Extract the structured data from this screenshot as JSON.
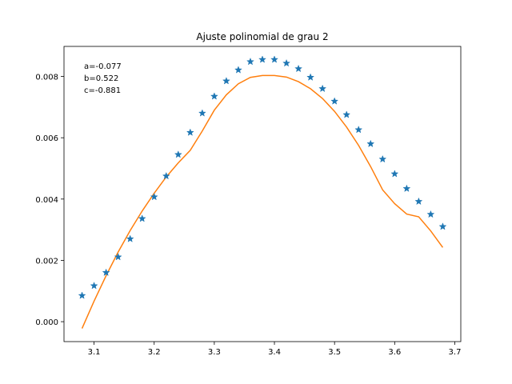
{
  "chart_data": {
    "type": "scatter",
    "title": "Ajuste polinomial de grau 2",
    "xlabel": "",
    "ylabel": "",
    "xlim": [
      3.05,
      3.71
    ],
    "ylim": [
      -0.00065,
      0.00898
    ],
    "xticks": [
      "3.1",
      "3.2",
      "3.3",
      "3.4",
      "3.5",
      "3.6",
      "3.7"
    ],
    "yticks": [
      "0.000",
      "0.002",
      "0.004",
      "0.006",
      "0.008"
    ],
    "annotation": [
      "a=-0.077",
      "b=0.522",
      "c=-0.881"
    ],
    "grid": false,
    "series": [
      {
        "kind": "scatter",
        "marker": "star",
        "color": "#1f77b4",
        "x": [
          3.08,
          3.1,
          3.12,
          3.14,
          3.16,
          3.18,
          3.2,
          3.22,
          3.24,
          3.26,
          3.28,
          3.3,
          3.32,
          3.34,
          3.36,
          3.38,
          3.4,
          3.42,
          3.44,
          3.46,
          3.48,
          3.5,
          3.52,
          3.54,
          3.56,
          3.58,
          3.6,
          3.62,
          3.64,
          3.66,
          3.68
        ],
        "y": [
          0.00085,
          0.00117,
          0.0016,
          0.00211,
          0.0027,
          0.00336,
          0.00407,
          0.00475,
          0.00545,
          0.00617,
          0.0068,
          0.00735,
          0.00785,
          0.00821,
          0.00848,
          0.00855,
          0.00855,
          0.00843,
          0.00825,
          0.00797,
          0.0076,
          0.00719,
          0.00675,
          0.00626,
          0.0058,
          0.0053,
          0.00482,
          0.00434,
          0.00392,
          0.0035,
          0.0031
        ]
      },
      {
        "kind": "line",
        "color": "#ff7f0e",
        "x": [
          3.08,
          3.1,
          3.12,
          3.14,
          3.16,
          3.18,
          3.2,
          3.22,
          3.24,
          3.26,
          3.28,
          3.3,
          3.32,
          3.34,
          3.36,
          3.38,
          3.4,
          3.42,
          3.44,
          3.46,
          3.48,
          3.5,
          3.52,
          3.54,
          3.56,
          3.58,
          3.6,
          3.62,
          3.64,
          3.66,
          3.68
        ],
        "y": [
          -0.00022,
          0.00067,
          0.0015,
          0.00227,
          0.00297,
          0.00361,
          0.00419,
          0.00472,
          0.00518,
          0.00559,
          0.00622,
          0.0069,
          0.0074,
          0.00776,
          0.00797,
          0.00803,
          0.00803,
          0.00798,
          0.00783,
          0.0076,
          0.00728,
          0.00686,
          0.00635,
          0.00575,
          0.00506,
          0.0043,
          0.00385,
          0.00351,
          0.00342,
          0.00296,
          0.00242
        ]
      }
    ]
  }
}
